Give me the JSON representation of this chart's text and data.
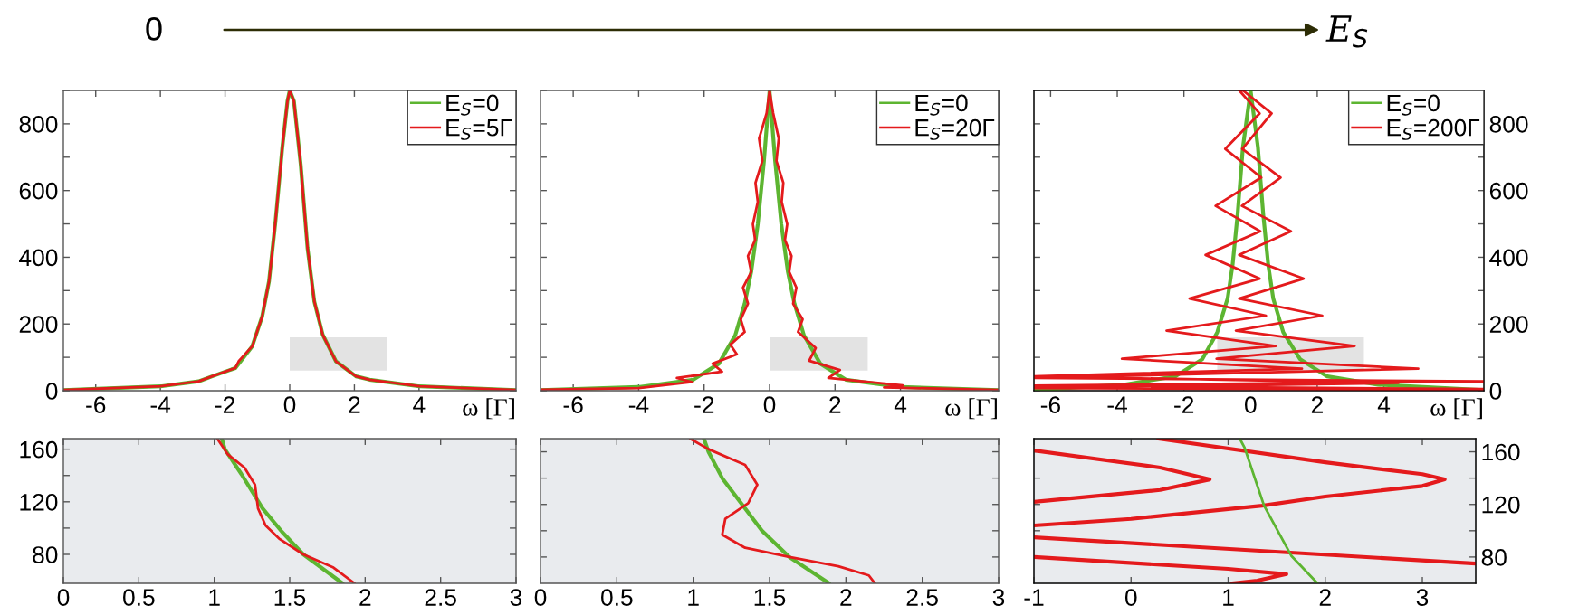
{
  "chart_data": [
    {
      "type": "other",
      "annotations": [
        "0",
        "E$_{S}$"
      ]
    },
    {
      "type": "line",
      "xlabel": "ω [Γ]",
      "xlim": [
        -7,
        7
      ],
      "xticks": [
        -6,
        -4,
        -2,
        0,
        2,
        4
      ],
      "ylim": [
        0,
        900
      ],
      "yticks": [
        0,
        {
          "value": 100,
          "label": null
        },
        200,
        {
          "value": 300,
          "label": null
        },
        400,
        {
          "value": 500,
          "label": null
        },
        600,
        {
          "value": 700,
          "label": null
        },
        800,
        {
          "value": 900,
          "label": null
        }
      ],
      "legend": "top right",
      "series": [
        {
          "type": "area",
          "color": "#e3e3e3",
          "x": [
            0,
            3,
            3,
            0
          ],
          "values": [
            60,
            60,
            160,
            160
          ]
        },
        {
          "name": "E$_{S}$=0",
          "color": "#5db531",
          "x": [
            -7,
            -4,
            -2.82,
            -2.4,
            -1.68,
            -1.16,
            -0.85,
            -0.64,
            -0.44,
            -0.23,
            -0.07,
            0,
            0.13,
            0.34,
            0.55,
            0.76,
            1.02,
            1.43,
            2.05,
            2.47,
            4.02,
            7
          ],
          "values": [
            2,
            13,
            28,
            43,
            68,
            133,
            223,
            328,
            508,
            728,
            868,
            900,
            868,
            678,
            428,
            268,
            168,
            88,
            43,
            33,
            13,
            2
          ]
        },
        {
          "name": "E$_{S}$=5Γ",
          "color": "#e41a1c",
          "x": [
            -7,
            -4,
            -2.82,
            -2.4,
            -1.68,
            -1.58,
            -1.16,
            -0.85,
            -0.64,
            -0.44,
            -0.23,
            -0.07,
            0,
            0.13,
            0.34,
            0.55,
            0.76,
            1.02,
            1.43,
            2.05,
            2.47,
            4.02,
            7
          ],
          "values": [
            2,
            13,
            28,
            43,
            68,
            88,
            133,
            223,
            328,
            508,
            728,
            868,
            900,
            868,
            678,
            428,
            268,
            168,
            88,
            43,
            33,
            13,
            2
          ]
        }
      ]
    },
    {
      "type": "line",
      "xlabel": "ω [Γ]",
      "xlim": [
        -7,
        7
      ],
      "xticks": [
        -6,
        -4,
        -2,
        0,
        2,
        4
      ],
      "ylim": [
        0,
        900
      ],
      "yticks": [
        0,
        {
          "value": 100,
          "label": null
        },
        200,
        {
          "value": 300,
          "label": null
        },
        400,
        {
          "value": 500,
          "label": null
        },
        600,
        {
          "value": 700,
          "label": null
        },
        800,
        {
          "value": 900,
          "label": null
        }
      ],
      "tick_labels": "x",
      "legend": "top right",
      "series": [
        {
          "type": "area",
          "color": "#e3e3e3",
          "x": [
            0,
            3,
            3,
            0
          ],
          "values": [
            60,
            60,
            160,
            160
          ]
        },
        {
          "name": "E$_{S}$=0",
          "color": "#5db531",
          "x": [
            -7,
            -4.01,
            -2.33,
            -1.55,
            -1.05,
            -0.76,
            -0.56,
            -0.36,
            -0.17,
            0,
            0.17,
            0.36,
            0.56,
            0.76,
            1.05,
            1.55,
            2.33,
            4.01,
            7
          ],
          "values": [
            2,
            11,
            33,
            81,
            166,
            261,
            356,
            499,
            689,
            900,
            689,
            499,
            356,
            261,
            166,
            81,
            33,
            11,
            2
          ]
        },
        {
          "name": "E$_{S}$=20Γ",
          "color": "#e41a1c",
          "x": [
            -7,
            -4,
            -2.38,
            -2.83,
            -1.45,
            -1.74,
            -1.0,
            -1.2,
            -0.76,
            -0.88,
            -0.66,
            -0.81,
            -0.56,
            -0.66,
            -0.44,
            -0.51,
            -0.36,
            -0.43,
            -0.22,
            -0.32,
            -0.09,
            0,
            0.11,
            0.28,
            0.21,
            0.42,
            0.37,
            0.54,
            0.47,
            0.67,
            0.6,
            0.82,
            0.72,
            1.01,
            0.87,
            1.41,
            1.21,
            2.15,
            1.8,
            4.07,
            3.5,
            7
          ],
          "values": [
            3,
            8,
            26,
            38,
            57,
            81,
            109,
            138,
            176,
            214,
            261,
            309,
            356,
            404,
            452,
            499,
            566,
            623,
            689,
            756,
            832,
            900,
            832,
            756,
            689,
            623,
            566,
            499,
            452,
            404,
            356,
            309,
            261,
            214,
            176,
            128,
            90,
            62,
            38,
            16,
            10,
            2
          ]
        }
      ]
    },
    {
      "type": "line",
      "xlabel": "ω [Γ]",
      "xlim": [
        -6.5,
        7
      ],
      "xticks": [
        -6,
        -4,
        -2,
        0,
        2,
        4
      ],
      "y2lim": [
        0,
        900
      ],
      "y2ticks": [
        0,
        {
          "value": 100,
          "label": null
        },
        200,
        {
          "value": 300,
          "label": null
        },
        400,
        {
          "value": 500,
          "label": null
        },
        600,
        {
          "value": 700,
          "label": null
        },
        800,
        {
          "value": 900,
          "label": null
        }
      ],
      "legend": "top right",
      "series": [
        {
          "type": "area",
          "axis": "y2",
          "color": "#e3e3e3",
          "x": [
            -1,
            3.4,
            3.4,
            -1
          ],
          "values": [
            60,
            60,
            160,
            160
          ]
        },
        {
          "name": "E$_{S}$=0",
          "axis": "y2",
          "color": "#5db531",
          "x": [
            -6.5,
            -3.79,
            -2.26,
            -1.45,
            -1.0,
            -0.69,
            -0.54,
            -0.39,
            -0.23,
            0,
            0.22,
            0.38,
            0.53,
            0.68,
            0.98,
            1.49,
            2.3,
            3.83,
            7
          ],
          "values": [
            2,
            18,
            43,
            94,
            175,
            276,
            377,
            528,
            730,
            900,
            730,
            528,
            377,
            276,
            175,
            94,
            43,
            18,
            2
          ]
        },
        {
          "name": "E$_{S}$=200Γ",
          "axis": "y2",
          "color": "#e41a1c",
          "x": [
            7,
            -6.5,
            4.44,
            -6.5,
            1.54,
            -3.86,
            0.75,
            -2.52,
            0.46,
            -1.83,
            0.27,
            -1.35,
            0.29,
            -1.05,
            0.32,
            -0.76,
            0.27,
            -0.34,
            -0.23,
            0.63,
            -0.25,
            0.9,
            -0.26,
            1.21,
            -0.34,
            1.59,
            -0.34,
            2.15,
            -0.44,
            3.12,
            -1.02,
            5.03,
            -6.5,
            7,
            -6.5,
            7
          ],
          "values": [
            2,
            8,
            23,
            43,
            66,
            96,
            134,
            180,
            225,
            276,
            336,
            407,
            478,
            554,
            639,
            725,
            831,
            900,
            900,
            831,
            725,
            639,
            554,
            478,
            407,
            336,
            276,
            225,
            180,
            134,
            96,
            66,
            38,
            28,
            15,
            5
          ]
        }
      ]
    },
    {
      "type": "line",
      "xlim": [
        0,
        3
      ],
      "xticks": [
        0,
        0.5,
        1,
        1.5,
        2,
        2.5,
        3
      ],
      "ylim": [
        58,
        168
      ],
      "yticks": [
        80,
        {
          "value": 100,
          "label": null
        },
        120,
        {
          "value": 140,
          "label": null
        },
        160
      ],
      "bands": [
        {
          "axis": "x",
          "from": 0,
          "to": 3,
          "color": "#e9ebee"
        }
      ],
      "series": [
        {
          "color": "#5db531",
          "x": [
            1.05,
            1.07,
            1.18,
            1.32,
            1.45,
            1.59,
            1.85
          ],
          "values": [
            168,
            160,
            141,
            115,
            97,
            80,
            58
          ]
        },
        {
          "color": "#e41a1c",
          "x": [
            1.02,
            1.09,
            1.2,
            1.27,
            1.29,
            1.34,
            1.43,
            1.59,
            1.79,
            1.93
          ],
          "values": [
            168,
            156,
            146,
            133,
            115,
            102,
            92,
            80,
            70,
            58
          ]
        }
      ]
    },
    {
      "type": "line",
      "xlim": [
        0,
        3
      ],
      "xticks": [
        0,
        0.5,
        1,
        1.5,
        2,
        2.5,
        3
      ],
      "ylim": [
        60,
        170
      ],
      "yticks": [
        80,
        {
          "value": 100,
          "label": null
        },
        120,
        {
          "value": 140,
          "label": null
        },
        160
      ],
      "tick_labels": "x",
      "bands": [
        {
          "axis": "x",
          "from": 0,
          "to": 3,
          "color": "#e9ebee"
        }
      ],
      "series": [
        {
          "color": "#5db531",
          "x": [
            1.07,
            1.1,
            1.19,
            1.32,
            1.45,
            1.63,
            1.89
          ],
          "values": [
            170,
            160,
            140,
            120,
            100,
            80,
            60
          ]
        },
        {
          "color": "#e41a1c",
          "x": [
            0.98,
            1.1,
            1.34,
            1.42,
            1.36,
            1.21,
            1.19,
            1.34,
            1.63,
            1.95,
            2.15,
            2.19
          ],
          "values": [
            170,
            162,
            150,
            135,
            121,
            109,
            97,
            87,
            80,
            73,
            66,
            60
          ]
        }
      ]
    },
    {
      "type": "line",
      "xlim": [
        -1,
        3.55
      ],
      "xticks": [
        -1,
        0,
        1,
        2,
        3
      ],
      "y2lim": [
        60,
        170
      ],
      "y2ticks": [
        80,
        {
          "value": 100,
          "label": null
        },
        120,
        {
          "value": 140,
          "label": null
        },
        160
      ],
      "bands": [
        {
          "axis": "x",
          "from": -1,
          "to": 3.55,
          "color": "#e9ebee"
        }
      ],
      "series": [
        {
          "axis": "y2",
          "color": "#e41a1c",
          "x": [
            0.28,
            2.0,
            3.0,
            3.23,
            3.0,
            2.0,
            1.35,
            0,
            -1,
            null,
            -1,
            3.55,
            null,
            -1,
            0.3,
            0.81,
            0.3,
            -1,
            null,
            -1,
            1.0,
            1.6,
            1.3,
            1.04
          ],
          "values": [
            170,
            152,
            143,
            139,
            134,
            126,
            119,
            109,
            104,
            null,
            95,
            75,
            null,
            161,
            148,
            139,
            131,
            122,
            null,
            80,
            71,
            67,
            62,
            60
          ]
        },
        {
          "axis": "y2",
          "color": "#5db531",
          "x": [
            1.12,
            1.17,
            1.37,
            1.65,
            1.92
          ],
          "values": [
            170,
            163,
            119,
            81,
            60
          ]
        }
      ]
    }
  ]
}
